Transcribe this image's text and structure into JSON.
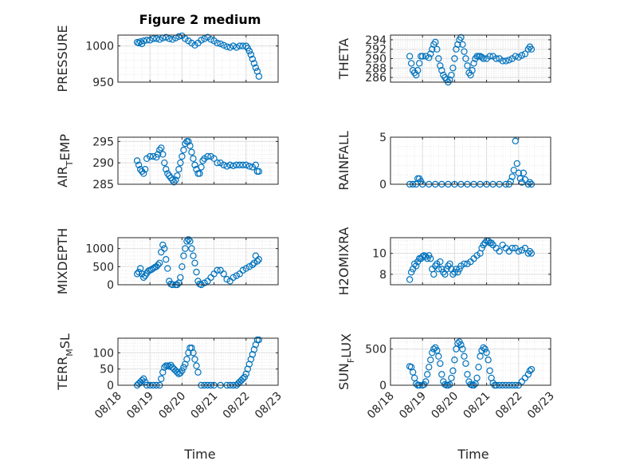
{
  "figure": {
    "title": "Figure 2 medium",
    "xlabel": "Time",
    "date_ticks": [
      "08/18",
      "08/19",
      "08/20",
      "08/21",
      "08/22",
      "08/23"
    ]
  },
  "colors": {
    "marker": "#0072bd",
    "axis": "#262626",
    "grid": "#dfdfdf",
    "background": "#ffffff"
  },
  "chart_data": [
    {
      "type": "scatter",
      "ylabel": "PRESSURE",
      "title": "Figure 2 medium",
      "xlim": [
        "08/18",
        "08/23"
      ],
      "ylim": [
        950,
        1015
      ],
      "yticks": [
        950,
        1000
      ],
      "ytick_labels": [
        "950",
        "1000"
      ],
      "grid": true,
      "x": [
        18.6,
        18.65,
        18.7,
        18.75,
        18.8,
        18.9,
        19.0,
        19.1,
        19.2,
        19.3,
        19.4,
        19.5,
        19.6,
        19.7,
        19.8,
        19.9,
        20.0,
        20.1,
        20.2,
        20.3,
        20.4,
        20.5,
        20.6,
        20.7,
        20.8,
        20.9,
        21.0,
        21.1,
        21.2,
        21.3,
        21.4,
        21.5,
        21.6,
        21.7,
        21.8,
        21.9,
        22.0,
        22.05,
        22.1,
        22.15,
        22.2,
        22.25,
        22.3,
        22.35,
        22.4
      ],
      "y": [
        1005,
        1004,
        1006,
        1003,
        1007,
        1008,
        1008,
        1010,
        1010,
        1009,
        1011,
        1012,
        1010,
        1009,
        1011,
        1013,
        1014,
        1010,
        1007,
        1004,
        1001,
        1004,
        1008,
        1010,
        1012,
        1009,
        1007,
        1004,
        1003,
        1001,
        999,
        998,
        1000,
        998,
        1000,
        1000,
        1000,
        997,
        993,
        988,
        982,
        976,
        970,
        965,
        958
      ]
    },
    {
      "type": "scatter",
      "ylabel": "THETA",
      "xlim": [
        "08/18",
        "08/23"
      ],
      "ylim": [
        285,
        295
      ],
      "yticks": [
        286,
        288,
        290,
        292,
        294
      ],
      "ytick_labels": [
        "286",
        "288",
        "290",
        "292",
        "294"
      ],
      "grid": true,
      "x": [
        18.6,
        18.65,
        18.7,
        18.75,
        18.8,
        18.85,
        18.9,
        18.95,
        19.0,
        19.1,
        19.2,
        19.25,
        19.3,
        19.35,
        19.4,
        19.45,
        19.5,
        19.55,
        19.6,
        19.65,
        19.7,
        19.75,
        19.8,
        19.85,
        19.9,
        19.95,
        20.0,
        20.05,
        20.1,
        20.15,
        20.2,
        20.25,
        20.3,
        20.35,
        20.4,
        20.45,
        20.5,
        20.55,
        20.6,
        20.65,
        20.7,
        20.75,
        20.8,
        20.85,
        20.9,
        21.0,
        21.1,
        21.2,
        21.3,
        21.4,
        21.5,
        21.6,
        21.7,
        21.8,
        21.9,
        22.0,
        22.1,
        22.2,
        22.3,
        22.35,
        22.4
      ],
      "y": [
        290.5,
        289,
        287.5,
        287,
        286.5,
        287.5,
        289,
        290.5,
        290.5,
        290.5,
        290.2,
        291,
        292,
        293,
        293.5,
        292,
        290,
        288.5,
        287.5,
        286.5,
        286,
        285.5,
        285,
        285.5,
        286.5,
        288,
        290,
        292,
        293,
        294,
        294.5,
        293,
        291.5,
        290,
        288.5,
        287,
        286.5,
        287.5,
        289,
        290,
        290.5,
        290.5,
        290.5,
        290.3,
        290,
        290,
        290.5,
        290.5,
        290,
        290,
        289.5,
        289.5,
        289.7,
        290,
        290.5,
        290.3,
        290.7,
        291,
        292,
        292.5,
        292
      ]
    },
    {
      "type": "scatter",
      "ylabel": "AIR_TEMP",
      "xlim": [
        "08/18",
        "08/23"
      ],
      "ylim": [
        285,
        296
      ],
      "yticks": [
        285,
        290,
        295
      ],
      "ytick_labels": [
        "285",
        "290",
        "295"
      ],
      "grid": true,
      "x": [
        18.6,
        18.65,
        18.7,
        18.75,
        18.8,
        18.85,
        18.9,
        19.0,
        19.1,
        19.2,
        19.25,
        19.3,
        19.35,
        19.4,
        19.45,
        19.5,
        19.55,
        19.6,
        19.65,
        19.7,
        19.75,
        19.8,
        19.85,
        19.9,
        19.95,
        20.0,
        20.05,
        20.1,
        20.15,
        20.2,
        20.25,
        20.3,
        20.35,
        20.4,
        20.45,
        20.5,
        20.55,
        20.6,
        20.65,
        20.7,
        20.8,
        20.9,
        21.0,
        21.1,
        21.2,
        21.3,
        21.4,
        21.5,
        21.6,
        21.7,
        21.8,
        21.9,
        22.0,
        22.1,
        22.2,
        22.3,
        22.35,
        22.4
      ],
      "y": [
        290.5,
        289.5,
        288.5,
        288,
        287.5,
        288.5,
        291,
        291.5,
        291.5,
        291.3,
        292,
        293,
        293.5,
        292,
        290,
        288.5,
        287.5,
        287,
        286.5,
        286,
        285.5,
        286,
        287,
        288.5,
        290,
        291.5,
        293,
        294.5,
        295,
        295,
        294,
        292.5,
        291,
        289.5,
        288.5,
        287.5,
        287.5,
        289,
        290.5,
        291,
        291.5,
        291.5,
        291,
        290,
        290,
        289.5,
        289.2,
        289.5,
        289.3,
        289.5,
        289.5,
        289.5,
        289.5,
        289.2,
        289,
        289.5,
        288,
        288
      ]
    },
    {
      "type": "scatter",
      "ylabel": "RAINFALL",
      "xlim": [
        "08/18",
        "08/23"
      ],
      "ylim": [
        0,
        5
      ],
      "yticks": [
        0,
        5
      ],
      "ytick_labels": [
        "0",
        "5"
      ],
      "grid": true,
      "x": [
        18.6,
        18.7,
        18.8,
        18.85,
        18.9,
        18.95,
        19.0,
        19.2,
        19.4,
        19.6,
        19.8,
        20.0,
        20.2,
        20.4,
        20.6,
        20.8,
        21.0,
        21.2,
        21.4,
        21.6,
        21.7,
        21.75,
        21.8,
        21.85,
        21.9,
        21.95,
        22.0,
        22.05,
        22.1,
        22.15,
        22.2,
        22.3,
        22.35,
        22.4
      ],
      "y": [
        0,
        0,
        0,
        0.6,
        0.6,
        0.3,
        0,
        0,
        0,
        0,
        0,
        0,
        0,
        0,
        0,
        0,
        0,
        0,
        0,
        0,
        0,
        0.3,
        0.8,
        1.5,
        4.6,
        2.2,
        1.2,
        0.6,
        0.2,
        1.2,
        0.5,
        0,
        0.2,
        0
      ]
    },
    {
      "type": "scatter",
      "ylabel": "MIXDEPTH",
      "xlim": [
        "08/18",
        "08/23"
      ],
      "ylim": [
        0,
        1300
      ],
      "yticks": [
        0,
        500,
        1000
      ],
      "ytick_labels": [
        "0",
        "500",
        "1000"
      ],
      "grid": true,
      "x": [
        18.6,
        18.65,
        18.7,
        18.75,
        18.8,
        18.85,
        18.9,
        18.95,
        19.0,
        19.05,
        19.1,
        19.15,
        19.2,
        19.25,
        19.3,
        19.35,
        19.4,
        19.45,
        19.5,
        19.55,
        19.6,
        19.65,
        19.7,
        19.8,
        19.85,
        19.9,
        19.95,
        20.0,
        20.05,
        20.1,
        20.15,
        20.2,
        20.25,
        20.3,
        20.35,
        20.4,
        20.45,
        20.5,
        20.55,
        20.6,
        20.7,
        20.8,
        20.9,
        21.0,
        21.1,
        21.2,
        21.3,
        21.4,
        21.5,
        21.6,
        21.7,
        21.8,
        21.9,
        22.0,
        22.1,
        22.2,
        22.25,
        22.3,
        22.35,
        22.4
      ],
      "y": [
        300,
        350,
        450,
        300,
        200,
        250,
        320,
        380,
        400,
        420,
        450,
        480,
        500,
        550,
        600,
        900,
        1100,
        1000,
        700,
        450,
        100,
        20,
        0,
        0,
        0,
        50,
        200,
        500,
        800,
        1000,
        1200,
        1250,
        1200,
        1000,
        800,
        600,
        350,
        100,
        20,
        0,
        50,
        100,
        200,
        300,
        400,
        400,
        300,
        150,
        100,
        200,
        250,
        300,
        400,
        450,
        500,
        550,
        600,
        800,
        650,
        700
      ]
    },
    {
      "type": "scatter",
      "ylabel": "H2OMIXRA",
      "xlim": [
        "08/18",
        "08/23"
      ],
      "ylim": [
        7,
        11.5
      ],
      "yticks": [
        8,
        10
      ],
      "ytick_labels": [
        "8",
        "10"
      ],
      "grid": true,
      "x": [
        18.6,
        18.65,
        18.7,
        18.75,
        18.8,
        18.85,
        18.9,
        18.95,
        19.0,
        19.05,
        19.1,
        19.15,
        19.2,
        19.25,
        19.3,
        19.35,
        19.4,
        19.45,
        19.5,
        19.55,
        19.6,
        19.65,
        19.7,
        19.75,
        19.8,
        19.85,
        19.9,
        19.95,
        20.0,
        20.05,
        20.1,
        20.15,
        20.2,
        20.3,
        20.4,
        20.5,
        20.6,
        20.7,
        20.8,
        20.85,
        20.9,
        20.95,
        21.0,
        21.05,
        21.1,
        21.15,
        21.2,
        21.3,
        21.4,
        21.5,
        21.6,
        21.7,
        21.8,
        21.9,
        22.0,
        22.1,
        22.2,
        22.3,
        22.35,
        22.4
      ],
      "y": [
        7.5,
        8.2,
        8.5,
        9,
        8.8,
        9.2,
        9.5,
        9.5,
        9.7,
        9.8,
        9.7,
        9.5,
        9.8,
        9.5,
        8.5,
        8,
        8.8,
        9,
        8.5,
        9.2,
        8.5,
        8.2,
        8,
        8.5,
        8.8,
        9,
        8.5,
        8,
        8.2,
        8.5,
        8.2,
        8.5,
        8.8,
        9,
        9,
        9.2,
        9.5,
        9.8,
        10,
        10.5,
        10.8,
        11,
        11.2,
        11.2,
        11,
        11,
        10.8,
        10.5,
        10.2,
        10.8,
        10.5,
        10.2,
        10.5,
        10.5,
        10.2,
        10.3,
        10.5,
        10,
        10.2,
        10
      ]
    },
    {
      "type": "scatter",
      "ylabel": "TERR_MSL",
      "xlim": [
        "08/18",
        "08/23"
      ],
      "ylim": [
        0,
        145
      ],
      "yticks": [
        0,
        50,
        100
      ],
      "ytick_labels": [
        "0",
        "50",
        "100"
      ],
      "grid": true,
      "x": [
        18.6,
        18.65,
        18.7,
        18.75,
        18.8,
        18.85,
        18.9,
        19.0,
        19.1,
        19.2,
        19.3,
        19.35,
        19.4,
        19.45,
        19.5,
        19.55,
        19.6,
        19.65,
        19.7,
        19.75,
        19.8,
        19.85,
        19.9,
        19.95,
        20.0,
        20.05,
        20.1,
        20.15,
        20.2,
        20.25,
        20.3,
        20.35,
        20.4,
        20.45,
        20.5,
        20.6,
        20.7,
        20.8,
        20.9,
        21.0,
        21.2,
        21.4,
        21.5,
        21.6,
        21.7,
        21.75,
        21.8,
        21.85,
        21.9,
        21.95,
        22.0,
        22.05,
        22.1,
        22.15,
        22.2,
        22.25,
        22.3,
        22.35,
        22.4
      ],
      "y": [
        0,
        5,
        10,
        15,
        20,
        10,
        0,
        0,
        0,
        0,
        0,
        20,
        40,
        55,
        60,
        60,
        58,
        62,
        55,
        50,
        45,
        40,
        35,
        38,
        45,
        55,
        65,
        80,
        100,
        115,
        115,
        100,
        80,
        60,
        40,
        0,
        0,
        0,
        0,
        0,
        0,
        0,
        0,
        0,
        0,
        5,
        10,
        15,
        20,
        25,
        35,
        50,
        65,
        80,
        95,
        110,
        125,
        140,
        140
      ]
    },
    {
      "type": "scatter",
      "ylabel": "SUN_FLUX",
      "xlim": [
        "08/18",
        "08/23"
      ],
      "ylim": [
        0,
        650
      ],
      "yticks": [
        0,
        500
      ],
      "ytick_labels": [
        "0",
        "500"
      ],
      "grid": true,
      "x": [
        18.6,
        18.65,
        18.7,
        18.75,
        18.8,
        18.85,
        18.9,
        19.0,
        19.05,
        19.1,
        19.15,
        19.2,
        19.25,
        19.3,
        19.35,
        19.4,
        19.45,
        19.5,
        19.55,
        19.6,
        19.65,
        19.7,
        19.75,
        19.8,
        19.85,
        19.9,
        19.95,
        20.0,
        20.05,
        20.1,
        20.15,
        20.2,
        20.25,
        20.3,
        20.35,
        20.4,
        20.45,
        20.5,
        20.55,
        20.6,
        20.65,
        20.7,
        20.75,
        20.8,
        20.85,
        20.9,
        20.95,
        21.0,
        21.05,
        21.1,
        21.15,
        21.2,
        21.25,
        21.3,
        21.4,
        21.5,
        21.6,
        21.7,
        21.8,
        21.9,
        22.0,
        22.1,
        22.2,
        22.3,
        22.35,
        22.4
      ],
      "y": [
        260,
        250,
        180,
        100,
        20,
        0,
        0,
        0,
        10,
        50,
        150,
        250,
        350,
        450,
        500,
        520,
        480,
        400,
        300,
        150,
        50,
        10,
        0,
        0,
        10,
        100,
        200,
        350,
        500,
        580,
        600,
        560,
        500,
        400,
        300,
        150,
        50,
        10,
        0,
        0,
        20,
        100,
        250,
        400,
        480,
        520,
        500,
        450,
        350,
        200,
        100,
        30,
        0,
        0,
        0,
        0,
        0,
        0,
        0,
        0,
        0,
        50,
        100,
        150,
        200,
        220
      ]
    }
  ]
}
